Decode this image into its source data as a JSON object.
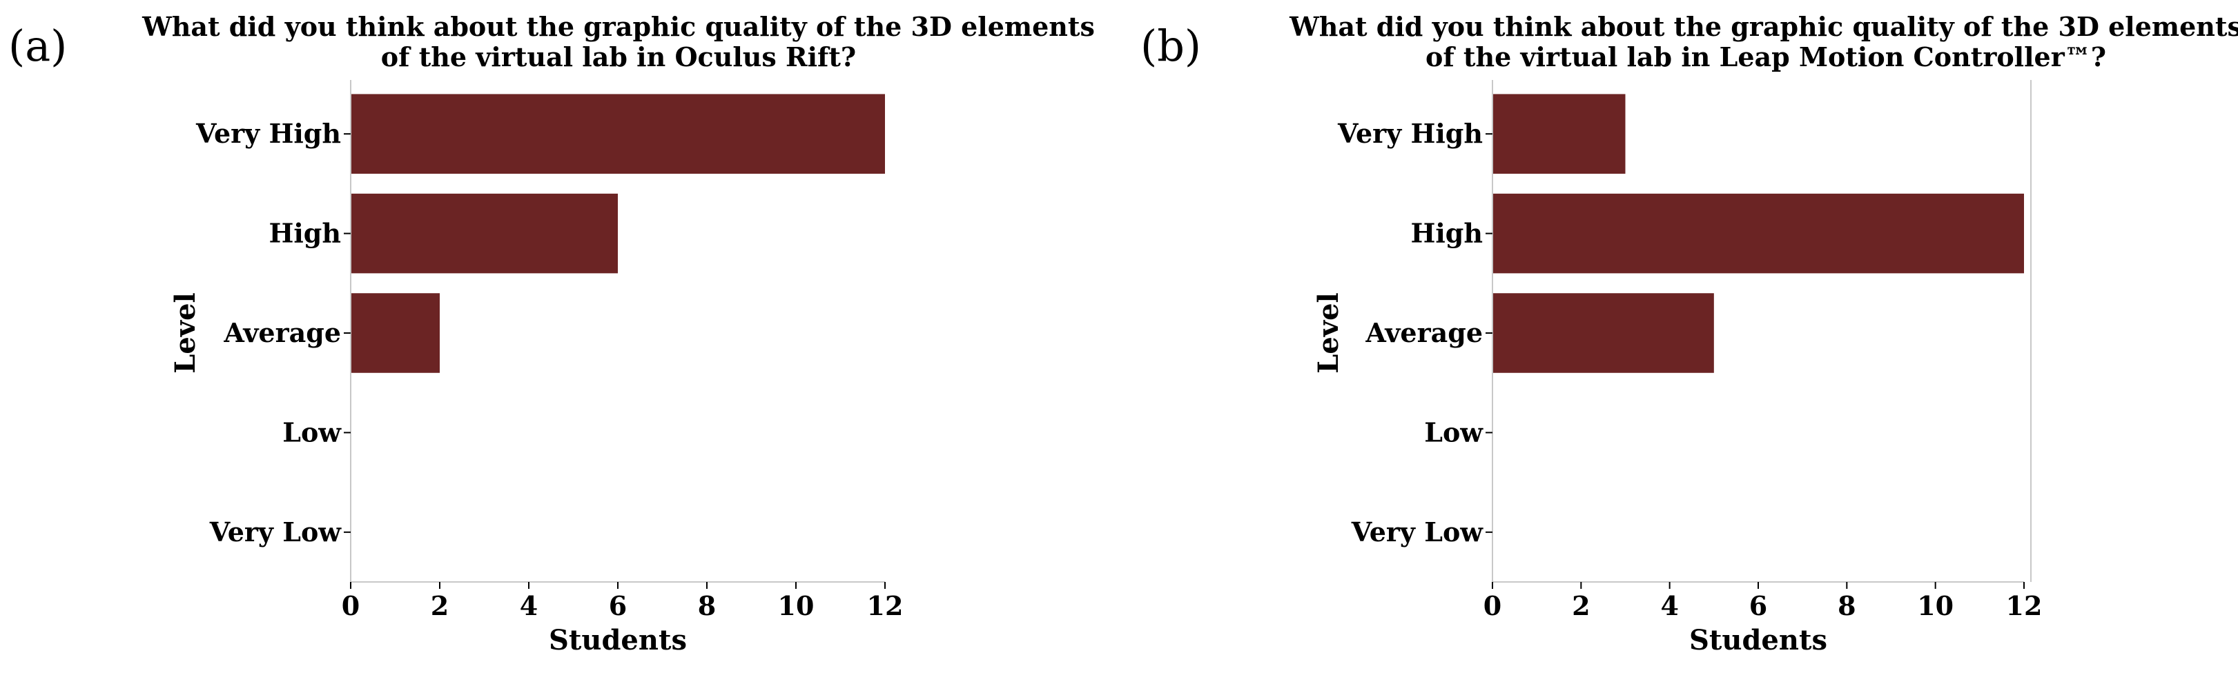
{
  "chart_data": [
    {
      "type": "bar",
      "orientation": "horizontal",
      "panel": "(a)",
      "title_lines": [
        "What did you think about the graphic quality of the 3D elements",
        "of the virtual lab in Oculus Rift?"
      ],
      "categories": [
        "Very High",
        "High",
        "Average",
        "Low",
        "Very Low"
      ],
      "values": [
        12,
        6,
        2,
        0,
        0
      ],
      "xlabel": "Students",
      "ylabel": "Level",
      "xlim": [
        0,
        12
      ],
      "xticks": [
        0,
        2,
        4,
        6,
        8,
        10,
        12
      ],
      "bar_color": "#6b2424",
      "grid": false
    },
    {
      "type": "bar",
      "orientation": "horizontal",
      "panel": "(b)",
      "title_lines": [
        "What did you think about the graphic quality of the 3D elements",
        "of the virtual lab in Leap Motion Controller™?"
      ],
      "categories": [
        "Very High",
        "High",
        "Average",
        "Low",
        "Very Low"
      ],
      "values": [
        3,
        12,
        5,
        0,
        0
      ],
      "xlabel": "Students",
      "ylabel": "Level",
      "xlim": [
        0,
        12
      ],
      "xticks": [
        0,
        2,
        4,
        6,
        8,
        10,
        12
      ],
      "bar_color": "#6b2424",
      "grid": false
    }
  ]
}
